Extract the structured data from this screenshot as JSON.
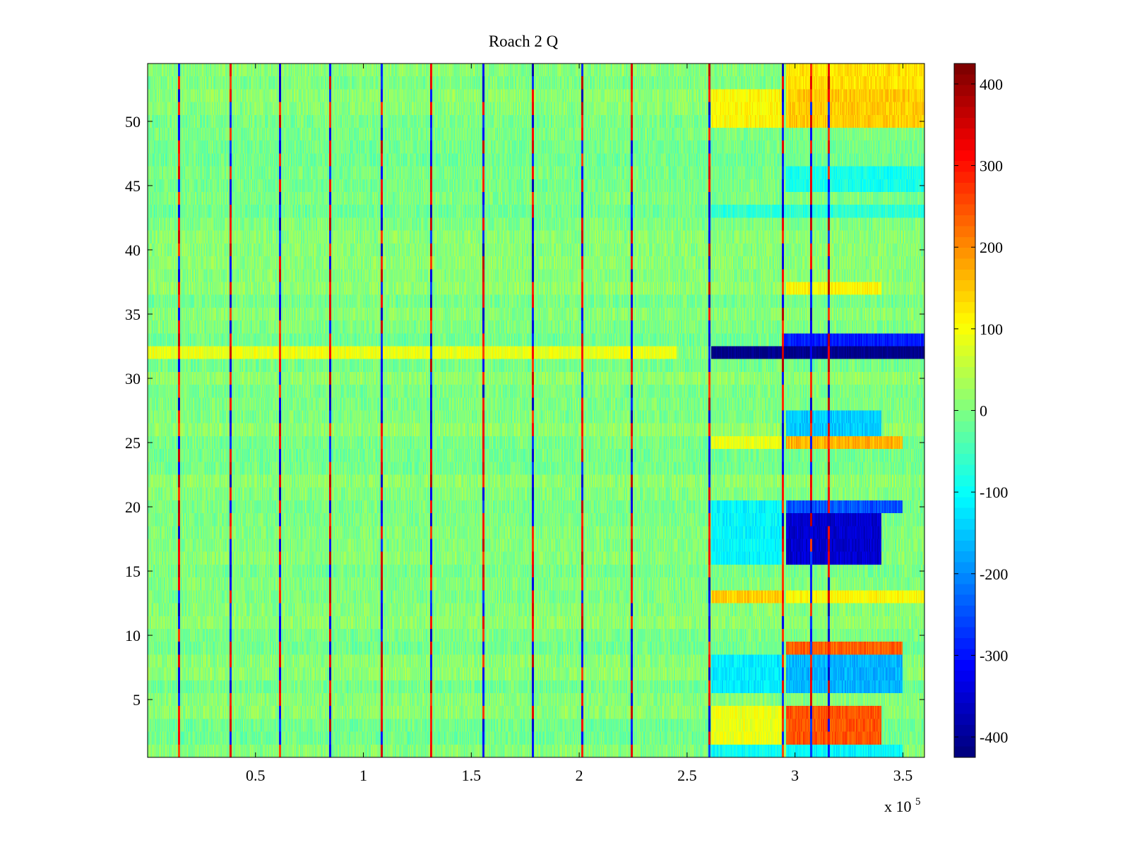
{
  "chart_data": {
    "type": "heatmap",
    "title": "Roach 2 Q",
    "xlabel": "",
    "ylabel": "",
    "x_exponent_base": "x 10",
    "x_exponent_power": "5",
    "xlim": [
      0,
      3.6
    ],
    "ylim": [
      0.5,
      54.5
    ],
    "x_ticks": [
      0.5,
      1,
      1.5,
      2,
      2.5,
      3,
      3.5
    ],
    "x_tick_labels": [
      "0.5",
      "1",
      "1.5",
      "2",
      "2.5",
      "3",
      "3.5"
    ],
    "y_ticks": [
      5,
      10,
      15,
      20,
      25,
      30,
      35,
      40,
      45,
      50
    ],
    "y_tick_labels": [
      "5",
      "10",
      "15",
      "20",
      "25",
      "30",
      "35",
      "40",
      "45",
      "50"
    ],
    "rows": 54,
    "colormap": "jet",
    "clim": [
      -425,
      425
    ],
    "colorbar_ticks": [
      -400,
      -300,
      -200,
      -100,
      0,
      100,
      200,
      300,
      400
    ],
    "colorbar_tick_labels": [
      "-400",
      "-300",
      "-200",
      "-100",
      "0",
      "100",
      "200",
      "300",
      "400"
    ],
    "stripe_x": [
      0.14,
      0.38,
      0.61,
      0.84,
      1.08,
      1.31,
      1.55,
      1.78,
      2.01,
      2.24,
      2.6,
      2.94,
      3.07,
      3.15
    ],
    "feature_regions": [
      {
        "x": [
          2.61,
          3.6
        ],
        "y": [
          31.5,
          32.5
        ],
        "value": -420
      },
      {
        "x": [
          2.94,
          3.6
        ],
        "y": [
          32.5,
          33.5
        ],
        "value": -300
      },
      {
        "x": [
          2.96,
          3.4
        ],
        "y": [
          15.5,
          19.5
        ],
        "value": -360
      },
      {
        "x": [
          2.96,
          3.5
        ],
        "y": [
          19.5,
          20.5
        ],
        "value": -250
      },
      {
        "x": [
          2.96,
          3.4
        ],
        "y": [
          1.5,
          4.5
        ],
        "value": 250
      },
      {
        "x": [
          2.96,
          3.5
        ],
        "y": [
          8.5,
          9.5
        ],
        "value": 240
      },
      {
        "x": [
          2.96,
          3.5
        ],
        "y": [
          5.5,
          8.5
        ],
        "value": -170
      },
      {
        "x": [
          2.96,
          3.5
        ],
        "y": [
          24.5,
          25.5
        ],
        "value": 170
      },
      {
        "x": [
          2.96,
          3.4
        ],
        "y": [
          25.5,
          27.5
        ],
        "value": -150
      },
      {
        "x": [
          2.96,
          3.6
        ],
        "y": [
          49.5,
          52.5
        ],
        "value": 150
      },
      {
        "x": [
          2.96,
          3.6
        ],
        "y": [
          52.5,
          54.5
        ],
        "value": 130
      },
      {
        "x": [
          2.96,
          3.4
        ],
        "y": [
          36.5,
          37.5
        ],
        "value": 110
      },
      {
        "x": [
          2.61,
          2.94
        ],
        "y": [
          49.5,
          52.5
        ],
        "value": 110
      },
      {
        "x": [
          2.61,
          2.94
        ],
        "y": [
          12.5,
          13.5
        ],
        "value": 150
      },
      {
        "x": [
          2.96,
          3.6
        ],
        "y": [
          12.5,
          13.5
        ],
        "value": 110
      },
      {
        "x": [
          2.61,
          2.94
        ],
        "y": [
          1.5,
          4.5
        ],
        "value": 90
      },
      {
        "x": [
          2.61,
          2.94
        ],
        "y": [
          15.5,
          20.5
        ],
        "value": -110
      },
      {
        "x": [
          2.61,
          2.94
        ],
        "y": [
          5.5,
          8.5
        ],
        "value": -120
      },
      {
        "x": [
          2.61,
          2.94
        ],
        "y": [
          0.5,
          1.5
        ],
        "value": -100
      },
      {
        "x": [
          2.96,
          3.5
        ],
        "y": [
          0.5,
          1.5
        ],
        "value": -110
      },
      {
        "x": [
          2.96,
          3.6
        ],
        "y": [
          44.5,
          46.5
        ],
        "value": -90
      },
      {
        "x": [
          2.61,
          3.6
        ],
        "y": [
          42.5,
          43.5
        ],
        "value": -70
      },
      {
        "x": [
          2.61,
          2.94
        ],
        "y": [
          24.5,
          25.5
        ],
        "value": 90
      },
      {
        "x": [
          0.0,
          2.45
        ],
        "y": [
          31.5,
          32.5
        ],
        "value": 90
      }
    ]
  }
}
